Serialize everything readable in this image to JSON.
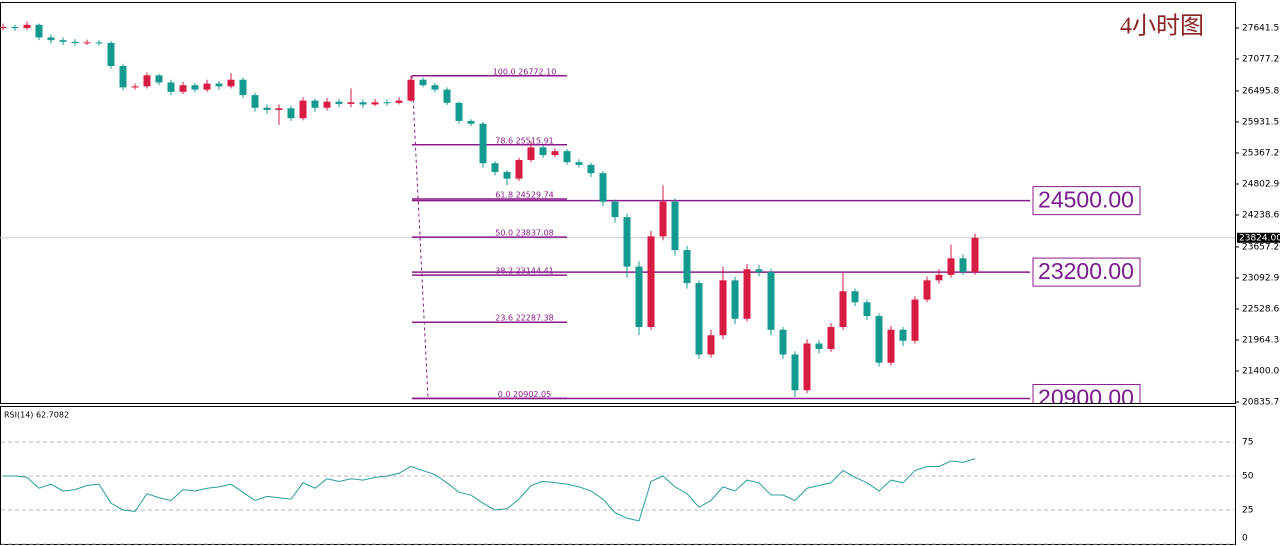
{
  "chart_data": [
    {
      "type": "candlestick",
      "title": "4小时图",
      "open": [
        27640,
        27660,
        27640,
        27700,
        27470,
        27420,
        27390,
        27370,
        27380,
        27370,
        26950,
        26560,
        26580,
        26780,
        26650,
        26480,
        26600,
        26520,
        26630,
        26580,
        26700,
        26420,
        26190,
        26150,
        26180,
        26000,
        26320,
        26190,
        26300,
        26260,
        26290,
        26250,
        26290,
        26280,
        26320,
        26700,
        26600,
        26520,
        26280,
        25950,
        25900,
        25180,
        25020,
        24900,
        25240,
        25470,
        25330,
        25400,
        25200,
        25150,
        25000,
        24480,
        24200,
        23300,
        22200,
        23850,
        24480,
        23600,
        23000,
        21700,
        22050,
        23050,
        22350,
        23250,
        23200,
        22150,
        21700,
        21050,
        21900,
        21800,
        22200,
        22850,
        22650,
        22400,
        21550,
        22150,
        21950,
        22700,
        23050,
        23150,
        23450,
        23200
      ],
      "high": [
        27720,
        27700,
        27760,
        27720,
        27520,
        27470,
        27440,
        27430,
        27420,
        27400,
        26990,
        26630,
        26830,
        26810,
        26700,
        26660,
        26640,
        26700,
        26680,
        26820,
        26740,
        26460,
        26250,
        26250,
        26230,
        26380,
        26360,
        26370,
        26350,
        26540,
        26340,
        26350,
        26340,
        26380,
        26772,
        26740,
        26640,
        26560,
        26300,
        25980,
        25930,
        25220,
        25060,
        25280,
        25580,
        25510,
        25450,
        25440,
        25250,
        25190,
        25040,
        24520,
        24260,
        23400,
        23950,
        24780,
        24540,
        23680,
        23050,
        22150,
        23300,
        23120,
        23350,
        23330,
        23260,
        22200,
        21760,
        21980,
        21960,
        22270,
        23190,
        22900,
        22700,
        22450,
        22220,
        22200,
        22760,
        23120,
        23250,
        23700,
        23520,
        23900
      ],
      "low": [
        27600,
        27590,
        27610,
        27420,
        27360,
        27330,
        27320,
        27330,
        27320,
        26900,
        26510,
        26520,
        26540,
        26600,
        26420,
        26440,
        26470,
        26480,
        26520,
        26540,
        26370,
        26120,
        26080,
        25880,
        25950,
        25960,
        26120,
        26140,
        26200,
        26200,
        26190,
        26220,
        26230,
        26250,
        26300,
        26560,
        26470,
        26240,
        25900,
        25860,
        25100,
        24960,
        24780,
        24860,
        25200,
        25280,
        25290,
        25150,
        25100,
        24930,
        24400,
        24100,
        23100,
        22050,
        22150,
        23780,
        23500,
        22900,
        21620,
        21640,
        21980,
        22250,
        22300,
        23120,
        22050,
        21620,
        20926,
        21000,
        21720,
        21750,
        22150,
        22580,
        22330,
        21480,
        21500,
        21850,
        21900,
        22650,
        22990,
        23100,
        23150,
        23150
      ],
      "close": [
        27660,
        27640,
        27700,
        27470,
        27420,
        27390,
        27370,
        27380,
        27370,
        26950,
        26560,
        26580,
        26780,
        26650,
        26480,
        26600,
        26520,
        26630,
        26580,
        26700,
        26420,
        26190,
        26150,
        26180,
        26000,
        26320,
        26190,
        26300,
        26260,
        26290,
        26250,
        26290,
        26280,
        26320,
        26700,
        26600,
        26520,
        26280,
        25950,
        25900,
        25180,
        25020,
        24900,
        25240,
        25470,
        25330,
        25400,
        25200,
        25150,
        25000,
        24480,
        24200,
        23300,
        22200,
        23850,
        24480,
        23600,
        23000,
        21700,
        22050,
        23050,
        22350,
        23250,
        23200,
        22150,
        21700,
        21050,
        21900,
        21800,
        22200,
        22850,
        22650,
        22400,
        21550,
        22150,
        21950,
        22700,
        23050,
        23150,
        23450,
        23200,
        23824
      ],
      "up_color": "#d81b43",
      "down_color": "#14998f",
      "ylim": [
        20817.5,
        28151
      ],
      "yticks": [
        {
          "value": 27641.5,
          "label": "27641.50"
        },
        {
          "value": 27077.2,
          "label": "27077.20"
        },
        {
          "value": 26495.8,
          "label": "26495.80"
        },
        {
          "value": 25931.5,
          "label": "25931.50"
        },
        {
          "value": 25367.2,
          "label": "25367.20"
        },
        {
          "value": 24802.9,
          "label": "24802.90"
        },
        {
          "value": 24238.6,
          "label": "24238.60"
        },
        {
          "value": 23657.2,
          "label": "23657.20"
        },
        {
          "value": 23092.9,
          "label": "23092.90"
        },
        {
          "value": 22528.6,
          "label": "22528.60"
        },
        {
          "value": 21964.3,
          "label": "21964.30"
        },
        {
          "value": 21400,
          "label": "21400.00"
        },
        {
          "value": 20835.7,
          "label": "20835.70"
        }
      ],
      "last_price": {
        "value": 23824,
        "label": "23824.00"
      },
      "fib_levels": [
        {
          "value": 26772.1,
          "label": "100.0 26772.10"
        },
        {
          "value": 25515.91,
          "label": "78.6 25515.91"
        },
        {
          "value": 24529.74,
          "label": "61.8 24529.74"
        },
        {
          "value": 23837.08,
          "label": "50.0 23837.08"
        },
        {
          "value": 23144.41,
          "label": "38.2 23144.41"
        },
        {
          "value": 22287.38,
          "label": "23.6 22287.38"
        },
        {
          "value": 20902.05,
          "label": "0.0 20902.05"
        }
      ],
      "key_levels": [
        {
          "value": 24500,
          "label": "24500.00"
        },
        {
          "value": 23200,
          "label": "23200.00"
        },
        {
          "value": 20900,
          "label": "20900.00"
        }
      ],
      "level_color": "#8b1a8b"
    },
    {
      "type": "line",
      "title": "RSI(14) 62.7082",
      "color": "#2a9d9d",
      "values": [
        50,
        50,
        49,
        41,
        44,
        39,
        40,
        43,
        44,
        30,
        25,
        24,
        37,
        34,
        32,
        40,
        39,
        41,
        42,
        44,
        38,
        32,
        35,
        34,
        33,
        45,
        41,
        48,
        46,
        48,
        47,
        49,
        50,
        52,
        57,
        54,
        51,
        45,
        38,
        36,
        30,
        25,
        26,
        33,
        43,
        46,
        45,
        44,
        42,
        39,
        33,
        23,
        19,
        17,
        46,
        50,
        42,
        37,
        27,
        32,
        42,
        39,
        47,
        45,
        36,
        36,
        32,
        41,
        43,
        45,
        54,
        49,
        45,
        39,
        47,
        45,
        54,
        57,
        57,
        61,
        60,
        62.7082
      ],
      "ylim": [
        0,
        100
      ],
      "yticks": [
        0,
        25,
        50,
        75
      ],
      "grid": true
    }
  ]
}
